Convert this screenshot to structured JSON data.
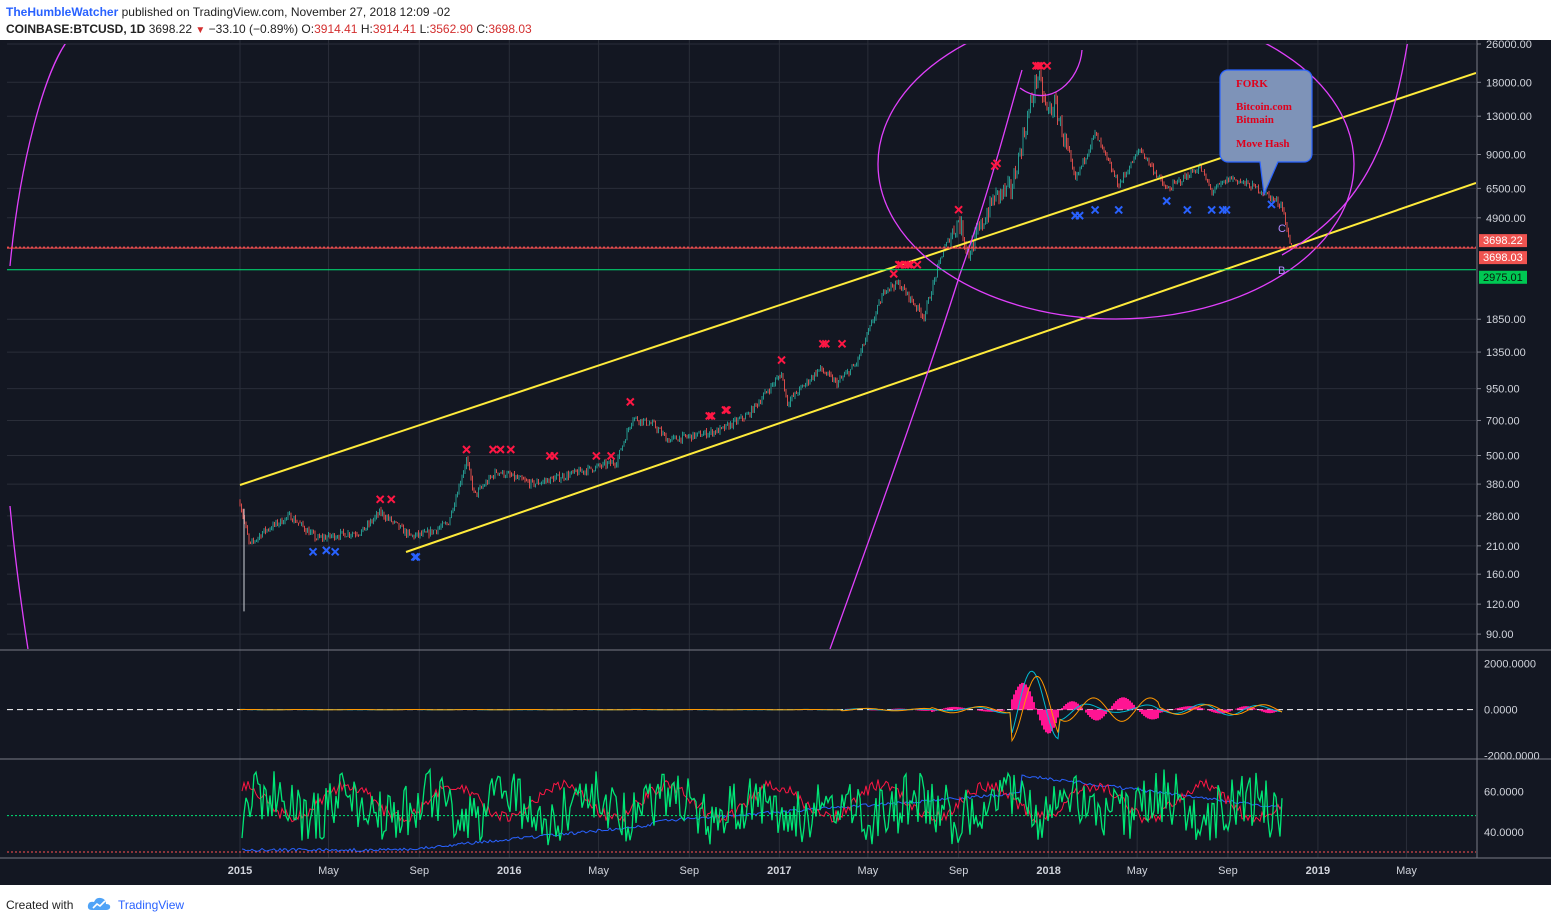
{
  "header": {
    "author": "TheHumbleWatcher",
    "published_text": "published on TradingView.com, November 27, 2018 12:09 -02",
    "symbol": "COINBASE:BTCUSD, 1D",
    "last": "3698.22",
    "change": "−33.10 (−0.89%)",
    "o_label": "O:",
    "o_value": "3914.41",
    "h_label": "H:",
    "h_value": "3914.41",
    "l_label": "L:",
    "l_value": "3562.90",
    "c_label": "C:",
    "c_value": "3698.03"
  },
  "footer": {
    "created": "Created with",
    "brand": "TradingView"
  },
  "colors": {
    "background": "#131722",
    "grid": "#2a2e39",
    "up": "#26a69a",
    "down": "#ef5350",
    "channel": "#ffeb3b",
    "arc": "#e040fb",
    "support": "#00e676",
    "resistance": "#ff5252",
    "callout_bg": "#7e93b8",
    "callout_border": "#2962ff",
    "callout_text": "#e0001b"
  },
  "chart_data": [
    {
      "type": "candlestick",
      "panel": "price",
      "scale": "log",
      "ylim": [
        78,
        26000
      ],
      "y_ticks": [
        "26000.00",
        "18000.00",
        "13000.00",
        "9000.00",
        "6500.00",
        "4900.00",
        "1850.00",
        "1350.00",
        "950.00",
        "700.00",
        "500.00",
        "380.00",
        "280.00",
        "210.00",
        "160.00",
        "120.00",
        "90.00"
      ],
      "x_ticks": [
        "2015",
        "May",
        "Sep",
        "2016",
        "May",
        "Sep",
        "2017",
        "May",
        "Sep",
        "2018",
        "May",
        "Sep",
        "2019",
        "May"
      ],
      "x_tick_dates": [
        "2015-01-01",
        "2015-05-01",
        "2015-09-01",
        "2016-01-01",
        "2016-05-01",
        "2016-09-01",
        "2017-01-01",
        "2017-05-01",
        "2017-09-01",
        "2018-01-01",
        "2018-05-01",
        "2018-09-01",
        "2019-01-01",
        "2019-05-01"
      ],
      "series": [
        {
          "dates": [
            "2015-01-01",
            "2015-01-14",
            "2015-02-01",
            "2015-03-10",
            "2015-04-15",
            "2015-05-20",
            "2015-06-15",
            "2015-07-10",
            "2015-08-20",
            "2015-09-10",
            "2015-10-10",
            "2015-11-04",
            "2015-11-15",
            "2015-12-15",
            "2016-02-01",
            "2016-03-15",
            "2016-04-20",
            "2016-05-25",
            "2016-06-16",
            "2016-07-15",
            "2016-08-03",
            "2016-09-15",
            "2016-10-15",
            "2016-11-20",
            "2017-01-04",
            "2017-01-12",
            "2017-02-25",
            "2017-03-20",
            "2017-04-15",
            "2017-05-25",
            "2017-06-12",
            "2017-07-16",
            "2017-08-10",
            "2017-09-01",
            "2017-09-15",
            "2017-10-20",
            "2017-11-12",
            "2017-12-17",
            "2017-12-30",
            "2018-01-10",
            "2018-02-06",
            "2018-03-05",
            "2018-04-06",
            "2018-05-05",
            "2018-06-10",
            "2018-07-25",
            "2018-08-10",
            "2018-09-05",
            "2018-10-15",
            "2018-11-14",
            "2018-11-20",
            "2018-11-27"
          ],
          "values": [
            320,
            210,
            240,
            280,
            225,
            235,
            240,
            290,
            230,
            235,
            260,
            480,
            340,
            430,
            380,
            410,
            440,
            470,
            720,
            670,
            580,
            610,
            640,
            740,
            1100,
            830,
            1150,
            1000,
            1200,
            2500,
            2600,
            1900,
            3500,
            4800,
            3500,
            6000,
            6500,
            19500,
            13500,
            14500,
            7000,
            11000,
            6700,
            9500,
            6400,
            8000,
            6300,
            7200,
            6400,
            5500,
            4300,
            3698
          ]
        }
      ],
      "buy_markers": [
        {
          "date": "2015-04-10",
          "value": 210
        },
        {
          "date": "2015-04-28",
          "value": 213
        },
        {
          "date": "2015-05-10",
          "value": 210
        },
        {
          "date": "2015-08-26",
          "value": 200
        },
        {
          "date": "2015-08-28",
          "value": 200
        },
        {
          "date": "2018-02-06",
          "value": 5300
        },
        {
          "date": "2018-02-12",
          "value": 5300
        },
        {
          "date": "2018-03-05",
          "value": 5600
        },
        {
          "date": "2018-04-06",
          "value": 5600
        },
        {
          "date": "2018-06-10",
          "value": 6100
        },
        {
          "date": "2018-07-08",
          "value": 5600
        },
        {
          "date": "2018-08-10",
          "value": 5600
        },
        {
          "date": "2018-08-25",
          "value": 5600
        },
        {
          "date": "2018-08-30",
          "value": 5600
        },
        {
          "date": "2018-10-30",
          "value": 5900
        }
      ],
      "sell_markers": [
        {
          "date": "2015-07-10",
          "value": 310
        },
        {
          "date": "2015-07-25",
          "value": 310
        },
        {
          "date": "2015-11-04",
          "value": 500
        },
        {
          "date": "2015-12-10",
          "value": 500
        },
        {
          "date": "2015-12-20",
          "value": 500
        },
        {
          "date": "2016-01-03",
          "value": 500
        },
        {
          "date": "2016-02-25",
          "value": 470
        },
        {
          "date": "2016-03-02",
          "value": 470
        },
        {
          "date": "2016-04-28",
          "value": 470
        },
        {
          "date": "2016-05-18",
          "value": 470
        },
        {
          "date": "2016-06-13",
          "value": 790
        },
        {
          "date": "2016-09-28",
          "value": 690
        },
        {
          "date": "2016-10-01",
          "value": 690
        },
        {
          "date": "2016-10-20",
          "value": 730
        },
        {
          "date": "2016-10-22",
          "value": 730
        },
        {
          "date": "2017-01-04",
          "value": 1180
        },
        {
          "date": "2017-03-01",
          "value": 1380
        },
        {
          "date": "2017-03-05",
          "value": 1380
        },
        {
          "date": "2017-03-27",
          "value": 1380
        },
        {
          "date": "2017-06-05",
          "value": 2700
        },
        {
          "date": "2017-06-12",
          "value": 2950
        },
        {
          "date": "2017-06-15",
          "value": 2950
        },
        {
          "date": "2017-06-21",
          "value": 2950
        },
        {
          "date": "2017-06-25",
          "value": 2950
        },
        {
          "date": "2017-06-28",
          "value": 2950
        },
        {
          "date": "2017-07-07",
          "value": 2950
        },
        {
          "date": "2017-09-01",
          "value": 5000
        },
        {
          "date": "2017-10-20",
          "value": 7600
        },
        {
          "date": "2017-10-23",
          "value": 7800
        },
        {
          "date": "2017-12-15",
          "value": 19900
        },
        {
          "date": "2017-12-18",
          "value": 19900
        },
        {
          "date": "2017-12-21",
          "value": 19900
        },
        {
          "date": "2017-12-30",
          "value": 19900
        }
      ],
      "horizontal_lines": [
        {
          "value": 3698.22,
          "label": "3698.22"
        },
        {
          "value": 3698.03,
          "label": "3698.03"
        },
        {
          "value": 2975.01,
          "label": "2975.01"
        }
      ],
      "annotations": {
        "callout": {
          "title": "FORK",
          "line1": "Bitcoin.com",
          "line2": "Bitmain",
          "line3": "Move Hash"
        },
        "wave_labels": [
          "C",
          "B"
        ]
      }
    },
    {
      "type": "line",
      "panel": "macd",
      "y_ticks": [
        "2000.0000",
        "0.0000",
        "-2000.0000"
      ],
      "ylim": [
        -2100,
        2500
      ]
    },
    {
      "type": "line",
      "panel": "rsi",
      "y_ticks": [
        "60.0000",
        "40.0000"
      ],
      "ylim": [
        29,
        75
      ],
      "levels": [
        48,
        30
      ]
    }
  ]
}
